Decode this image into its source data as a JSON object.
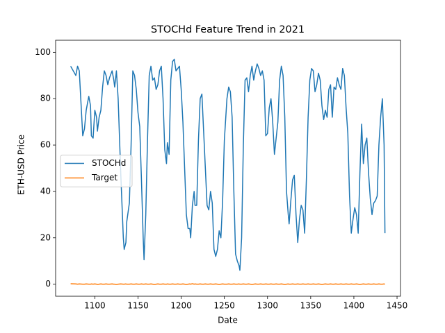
{
  "chart_data": {
    "type": "line",
    "title": "STOCHd Feature Trend in 2021",
    "x_label": "Date",
    "y_label": "ETH-USD Price",
    "x": [
      1072,
      1078,
      1080,
      1082,
      1086,
      1088,
      1090,
      1093,
      1095,
      1096,
      1098,
      1100,
      1102,
      1103,
      1105,
      1107,
      1109,
      1111,
      1113,
      1115,
      1117,
      1120,
      1122,
      1123,
      1125,
      1127,
      1130,
      1133,
      1134,
      1136,
      1137,
      1140,
      1142,
      1144,
      1146,
      1148,
      1150,
      1152,
      1154,
      1156,
      1157,
      1159,
      1161,
      1163,
      1165,
      1167,
      1169,
      1171,
      1173,
      1175,
      1177,
      1179,
      1181,
      1183,
      1184,
      1186,
      1188,
      1190,
      1192,
      1194,
      1196,
      1198,
      1200,
      1202,
      1204,
      1206,
      1208,
      1210,
      1211,
      1213,
      1215,
      1216,
      1218,
      1220,
      1222,
      1224,
      1226,
      1228,
      1230,
      1232,
      1234,
      1236,
      1238,
      1240,
      1242,
      1244,
      1246,
      1248,
      1250,
      1253,
      1255,
      1257,
      1259,
      1261,
      1263,
      1265,
      1267,
      1268,
      1270,
      1272,
      1274,
      1276,
      1278,
      1280,
      1282,
      1284,
      1286,
      1288,
      1290,
      1292,
      1294,
      1296,
      1298,
      1300,
      1302,
      1304,
      1306,
      1308,
      1310,
      1312,
      1314,
      1316,
      1318,
      1320,
      1322,
      1324,
      1325,
      1327,
      1329,
      1331,
      1333,
      1335,
      1337,
      1339,
      1341,
      1343,
      1345,
      1347,
      1349,
      1351,
      1353,
      1355,
      1357,
      1359,
      1361,
      1363,
      1365,
      1367,
      1369,
      1371,
      1373,
      1375,
      1377,
      1379,
      1381,
      1383,
      1385,
      1387,
      1389,
      1391,
      1393,
      1395,
      1397,
      1399,
      1401,
      1403,
      1405,
      1407,
      1409,
      1411,
      1413,
      1415,
      1417,
      1419,
      1421,
      1423,
      1425,
      1427,
      1429,
      1431,
      1433,
      1435,
      1436
    ],
    "series": [
      {
        "name": "STOCHd",
        "color": "#1f77b4",
        "values": [
          94,
          90,
          94,
          92,
          64,
          67,
          75,
          81,
          77,
          64,
          63,
          75,
          72,
          66,
          72,
          75,
          85,
          92,
          90,
          86,
          89,
          92,
          88,
          85,
          92,
          80,
          48,
          20,
          15,
          18,
          27,
          35,
          60,
          92,
          90,
          84,
          74,
          68,
          45,
          20,
          10.5,
          30,
          62,
          90,
          94,
          88,
          89,
          84,
          86,
          92,
          94,
          80,
          58,
          52,
          61,
          56,
          88,
          96,
          97,
          92,
          93,
          94,
          84,
          70,
          50,
          30,
          24,
          24,
          20,
          34,
          40,
          34,
          34,
          62,
          80,
          82,
          66,
          50,
          34,
          32,
          40,
          35,
          15,
          12,
          15,
          23,
          20,
          36,
          62,
          80,
          85,
          83,
          72,
          40,
          13,
          10,
          8,
          6,
          20,
          60,
          88,
          89,
          83,
          90,
          94,
          88,
          92,
          95,
          93,
          90,
          92,
          88,
          64,
          65,
          76,
          80,
          70,
          56,
          63,
          70,
          88,
          94,
          90,
          72,
          40,
          30,
          26,
          36,
          45,
          47,
          30,
          18,
          28,
          34,
          32,
          22,
          45,
          72,
          88,
          93,
          92,
          83,
          86,
          91,
          88,
          77,
          71,
          75,
          72,
          84,
          86,
          72,
          85,
          84,
          89,
          86,
          84,
          93,
          90,
          76,
          65,
          38,
          22,
          28,
          33,
          30,
          22,
          48,
          69,
          52,
          60,
          63,
          48,
          37,
          30,
          35,
          36,
          38,
          60,
          72,
          80,
          60,
          22
        ]
      },
      {
        "name": "Target",
        "color": "#ff7f0e",
        "values": [
          0.2,
          0.1,
          0,
          0.1,
          0,
          0,
          0.1,
          0,
          0,
          0.1,
          0,
          0.1,
          0,
          -0.1,
          0,
          0.1,
          0,
          0,
          0.1,
          0,
          0,
          0.1,
          0,
          0,
          -0.1,
          0,
          0.1,
          0,
          0,
          0.1,
          0,
          0,
          0.1,
          0,
          0,
          0.1,
          0,
          0,
          0.1,
          0,
          0,
          0.1,
          0,
          0,
          0.1,
          0,
          -0.1,
          0,
          0.1,
          0,
          0,
          0.1,
          0,
          0,
          0.1,
          0,
          0,
          0.1,
          0,
          0,
          0.1,
          0,
          0,
          0.1,
          0,
          -0.1,
          0,
          0.1,
          0,
          0.2,
          0,
          0.1,
          0,
          0,
          0.1,
          0,
          0,
          0.1,
          0,
          0,
          0.1,
          0,
          0,
          0.1,
          0,
          -0.1,
          0,
          0.1,
          0,
          0,
          0.1,
          0,
          0,
          0.1,
          0,
          0,
          0.1,
          0,
          0,
          0.1,
          0,
          0,
          0.1,
          0,
          -0.1,
          0,
          0.1,
          0,
          0,
          0.1,
          0,
          0,
          0.1,
          0,
          0,
          0.1,
          0,
          0,
          0.1,
          0,
          0,
          0.1,
          0,
          -0.1,
          0,
          0.1,
          0,
          0,
          0.1,
          0,
          0,
          0.1,
          0,
          0,
          0.1,
          0,
          0,
          0.1,
          0,
          0,
          0.1,
          0,
          0,
          0.1,
          0,
          -0.1,
          0,
          0.1,
          0,
          0,
          0.1,
          0,
          0,
          0.1,
          0,
          0,
          0.1,
          0,
          0,
          0.1,
          0,
          0,
          0.1,
          0,
          0,
          0.1,
          0,
          -0.1,
          0,
          0.1,
          0,
          0,
          0.1,
          0,
          0,
          0.1,
          0,
          0,
          0.1,
          0,
          0,
          0.1,
          0
        ]
      }
    ],
    "xlim": [
      1054.6,
      1454
    ],
    "ylim": [
      -5.2,
      105.2
    ],
    "xticks": [
      1100,
      1150,
      1200,
      1250,
      1300,
      1350,
      1400,
      1450
    ],
    "yticks": [
      0,
      20,
      40,
      60,
      80,
      100
    ],
    "legend": "center left"
  }
}
